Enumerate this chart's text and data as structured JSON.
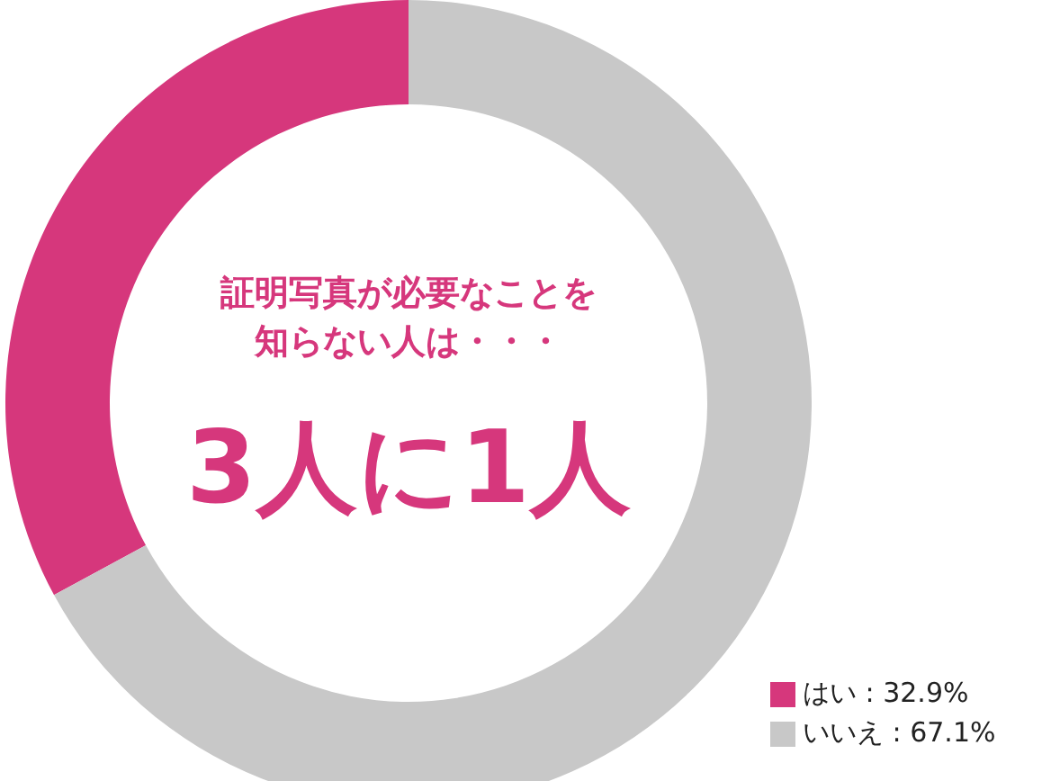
{
  "chart_data": {
    "type": "donut",
    "categories": [
      "はい",
      "いいえ"
    ],
    "values": [
      32.9,
      67.1
    ],
    "value_labels": [
      "32.9%",
      "67.1%"
    ],
    "colors": [
      "#d6377c",
      "#c8c8c8"
    ],
    "legend": "bottom right",
    "annotations": [
      "証明写真が必要なことを知らない人は・・・",
      "3人に1人"
    ]
  }
}
